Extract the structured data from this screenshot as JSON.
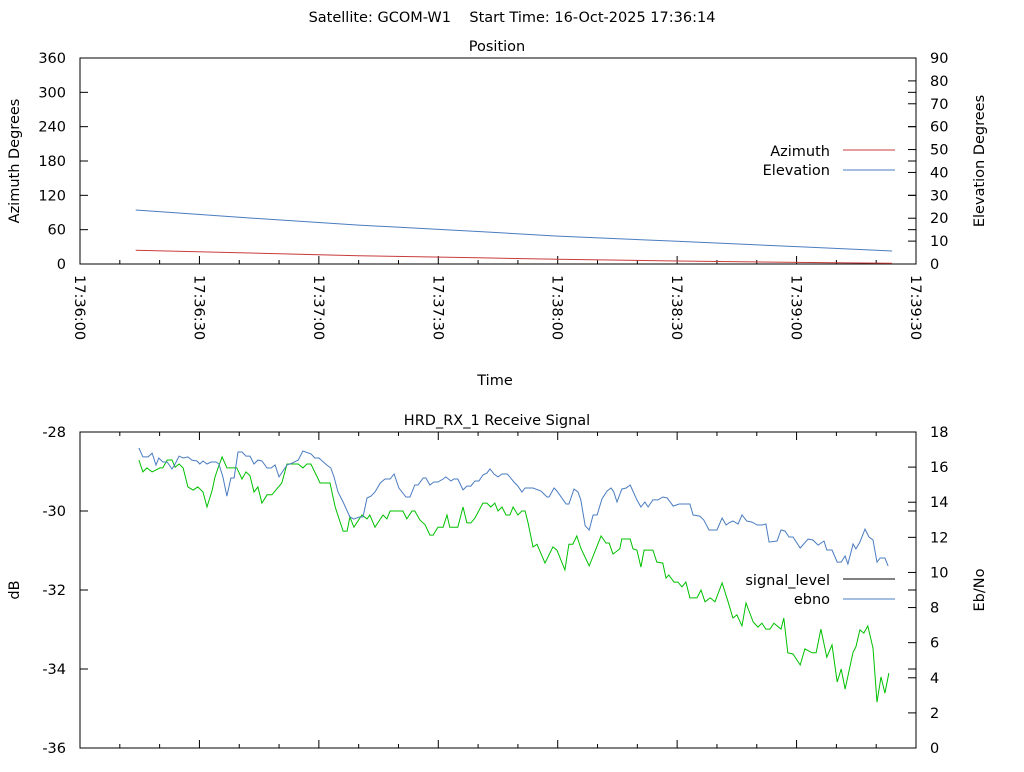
{
  "header": {
    "title": "Satellite: GCOM-W1    Start Time: 16-Oct-2025 17:36:14"
  },
  "colors": {
    "azimuth": "#c83c3c",
    "elevation": "#4a7cc0",
    "signal_level": "#00c000",
    "signal_level_legend": "#000000",
    "ebno": "#4a7cc0"
  },
  "chart_data": [
    {
      "type": "line",
      "title": "Position",
      "xlabel": "Time",
      "ylabel": "Azimuth Degrees",
      "y2label": "Elevation Degrees",
      "x_unit": "seconds after 17:36:00",
      "xlim": [
        0,
        210
      ],
      "ylim": [
        0,
        360
      ],
      "y2lim": [
        0,
        90
      ],
      "xticks": [
        0,
        30,
        60,
        90,
        120,
        150,
        180,
        210
      ],
      "xtick_labels": [
        "17:36:00",
        "17:36:30",
        "17:37:00",
        "17:37:30",
        "17:38:00",
        "17:38:30",
        "17:39:00",
        "17:39:30"
      ],
      "yticks": [
        "0",
        "60",
        "120",
        "180",
        "240",
        "300",
        "360"
      ],
      "y2ticks": [
        "0",
        "10",
        "20",
        "30",
        "40",
        "50",
        "60",
        "70",
        "80",
        "90"
      ],
      "legend_position": "right",
      "grid": false,
      "series": [
        {
          "name": "Azimuth",
          "axis": "y",
          "x": [
            14,
            40,
            70,
            100,
            120,
            150,
            180,
            204
          ],
          "values": [
            23.9,
            19.5,
            14.5,
            10.8,
            8.2,
            5.2,
            2.8,
            1.2
          ]
        },
        {
          "name": "Elevation",
          "axis": "y2",
          "x": [
            14,
            40,
            70,
            100,
            120,
            150,
            180,
            204
          ],
          "values": [
            23.6,
            20.4,
            17.0,
            14.2,
            12.2,
            9.9,
            7.6,
            5.7
          ]
        }
      ]
    },
    {
      "type": "line",
      "title": "HRD_RX_1 Receive Signal",
      "ylabel": "dB",
      "y2label": "Eb/No",
      "x_unit": "seconds after 17:36:00",
      "xlim": [
        0,
        210
      ],
      "ylim": [
        -36,
        -28
      ],
      "y2lim": [
        0,
        18
      ],
      "yticks": [
        "-28",
        "-30",
        "-32",
        "-34",
        "-36"
      ],
      "y2ticks": [
        "0",
        "2",
        "4",
        "6",
        "8",
        "10",
        "12",
        "14",
        "16",
        "18"
      ],
      "legend_position": "right",
      "grid": false,
      "series": [
        {
          "name": "signal_level",
          "axis": "y",
          "x": [
            14.8,
            15.8,
            16.8,
            18.1,
            20.1,
            20.8,
            21.9,
            23.1,
            23.9,
            24.9,
            25.9,
            27.1,
            28.4,
            29.6,
            30.9,
            31.9,
            33.2,
            33.9,
            34.7,
            35.7,
            36.9,
            39.4,
            40.7,
            41.7,
            42.7,
            43.7,
            44.7,
            45.7,
            47.0,
            48.2,
            50.7,
            52.0,
            54.8,
            56.0,
            57.0,
            58.0,
            60.3,
            62.8,
            64.1,
            66.1,
            67.1,
            67.8,
            68.8,
            70.8,
            72.1,
            72.8,
            74.1,
            76.1,
            77.1,
            77.9,
            81.1,
            82.1,
            83.4,
            84.1,
            85.4,
            86.7,
            87.9,
            88.7,
            89.9,
            91.2,
            92.2,
            92.9,
            94.9,
            96.2,
            97.2,
            98.2,
            99.2,
            101.2,
            102.2,
            103.2,
            104.2,
            105.0,
            106.0,
            107.0,
            108.0,
            108.8,
            110.0,
            111.0,
            111.8,
            112.5,
            113.8,
            114.8,
            116.8,
            118.8,
            119.8,
            121.8,
            122.8,
            123.8,
            124.8,
            125.8,
            127.9,
            130.9,
            132.1,
            132.9,
            133.9,
            135.6,
            136.1,
            138.2,
            138.9,
            139.9,
            140.9,
            141.7,
            143.9,
            144.9,
            146.4,
            147.2,
            147.9,
            149.2,
            150.2,
            151.2,
            152.2,
            153.2,
            155.0,
            156.0,
            157.0,
            158.3,
            159.5,
            161.3,
            162.8,
            164.0,
            165.0,
            166.3,
            167.3,
            169.1,
            170.3,
            171.3,
            172.3,
            173.3,
            174.3,
            176.1,
            176.8,
            177.8,
            179.1,
            180.9,
            182.1,
            183.9,
            184.9,
            186.1,
            187.6,
            188.9,
            190.2,
            191.2,
            192.2,
            194.2,
            194.9,
            195.9,
            196.9,
            197.9,
            199.2,
            200.2,
            201.2,
            202.2,
            203.2
          ],
          "values": [
            -28.71,
            -29.01,
            -28.91,
            -29.01,
            -28.91,
            -28.91,
            -28.71,
            -28.71,
            -28.89,
            -28.81,
            -28.91,
            -29.39,
            -29.47,
            -29.39,
            -29.52,
            -29.9,
            -29.47,
            -29.14,
            -28.91,
            -28.63,
            -28.91,
            -28.91,
            -29.19,
            -29.01,
            -29.11,
            -29.52,
            -29.39,
            -29.8,
            -29.59,
            -29.59,
            -29.29,
            -28.81,
            -28.81,
            -28.91,
            -28.81,
            -28.81,
            -29.29,
            -29.29,
            -29.9,
            -30.51,
            -30.51,
            -30.15,
            -30.41,
            -30.1,
            -30.2,
            -30.1,
            -30.41,
            -30.1,
            -30.2,
            -30.0,
            -30.0,
            -30.2,
            -30.0,
            -30.0,
            -30.23,
            -30.35,
            -30.61,
            -30.61,
            -30.41,
            -30.41,
            -30.1,
            -30.41,
            -30.41,
            -29.9,
            -30.3,
            -30.3,
            -30.18,
            -29.8,
            -29.8,
            -29.9,
            -29.8,
            -30.0,
            -29.9,
            -30.1,
            -30.1,
            -29.9,
            -30.1,
            -30.0,
            -30.0,
            -30.28,
            -30.91,
            -30.84,
            -31.32,
            -30.91,
            -30.99,
            -31.49,
            -30.84,
            -30.84,
            -30.63,
            -30.94,
            -31.39,
            -30.63,
            -30.81,
            -30.81,
            -31.09,
            -30.96,
            -30.71,
            -30.71,
            -30.96,
            -30.99,
            -31.42,
            -30.99,
            -30.99,
            -31.29,
            -31.32,
            -31.7,
            -31.62,
            -31.8,
            -31.8,
            -31.92,
            -31.8,
            -32.2,
            -32.2,
            -32.0,
            -32.3,
            -32.2,
            -32.3,
            -31.82,
            -32.3,
            -32.71,
            -32.63,
            -32.91,
            -32.33,
            -32.81,
            -32.94,
            -32.84,
            -32.99,
            -32.99,
            -32.84,
            -32.99,
            -32.71,
            -33.59,
            -33.62,
            -33.9,
            -33.49,
            -33.59,
            -33.59,
            -32.99,
            -33.7,
            -33.39,
            -34.33,
            -34.0,
            -34.51,
            -33.57,
            -33.44,
            -33.01,
            -33.09,
            -32.91,
            -33.47,
            -34.84,
            -34.2,
            -34.61,
            -34.1
          ]
        },
        {
          "name": "ebno",
          "axis": "y2",
          "x": [
            14.8,
            15.8,
            17.1,
            18.1,
            19.1,
            19.8,
            20.8,
            21.9,
            23.1,
            23.9,
            24.9,
            25.9,
            27.1,
            28.1,
            29.4,
            30.1,
            30.9,
            31.9,
            32.9,
            34.2,
            34.9,
            35.9,
            36.9,
            37.9,
            38.7,
            39.7,
            40.7,
            41.7,
            42.7,
            43.7,
            44.7,
            45.7,
            47.0,
            48.0,
            49.0,
            50.0,
            52.0,
            53.3,
            54.8,
            56.0,
            58.0,
            59.0,
            60.0,
            62.0,
            63.0,
            63.8,
            64.8,
            66.1,
            67.8,
            68.8,
            70.1,
            71.1,
            72.1,
            73.1,
            74.1,
            75.4,
            76.6,
            77.9,
            78.9,
            80.1,
            81.9,
            82.9,
            84.1,
            84.9,
            86.2,
            86.9,
            87.9,
            88.9,
            89.9,
            91.2,
            91.9,
            93.2,
            93.9,
            94.9,
            96.2,
            97.2,
            98.2,
            99.2,
            100.2,
            101.2,
            102.2,
            103.0,
            104.0,
            105.0,
            106.0,
            107.3,
            108.0,
            109.0,
            110.0,
            111.0,
            111.8,
            113.8,
            115.8,
            117.3,
            117.8,
            119.1,
            119.8,
            122.1,
            122.8,
            124.1,
            125.1,
            125.8,
            126.9,
            127.9,
            128.9,
            129.9,
            131.1,
            132.4,
            133.4,
            134.1,
            134.9,
            136.1,
            137.2,
            138.2,
            139.9,
            140.9,
            141.9,
            142.7,
            143.9,
            145.2,
            146.4,
            147.5,
            149.0,
            150.5,
            152.0,
            153.2,
            154.0,
            155.7,
            156.7,
            158.0,
            160.0,
            161.3,
            162.3,
            163.0,
            164.0,
            165.3,
            166.3,
            167.5,
            168.8,
            170.1,
            171.3,
            172.3,
            173.1,
            175.1,
            176.1,
            177.1,
            178.1,
            179.1,
            180.9,
            182.9,
            184.1,
            185.4,
            186.9,
            187.6,
            188.9,
            190.2,
            191.2,
            192.2,
            192.9,
            194.2,
            194.9,
            195.9,
            197.2,
            198.2,
            199.2,
            200.2,
            201.0,
            202.2,
            203.0
          ],
          "values": [
            17.09,
            16.58,
            16.58,
            16.8,
            16.12,
            16.52,
            16.29,
            16.29,
            15.89,
            16.18,
            16.63,
            16.52,
            16.58,
            16.4,
            16.35,
            16.18,
            16.35,
            16.18,
            16.29,
            16.29,
            16.18,
            15.44,
            14.35,
            15.38,
            15.38,
            16.86,
            16.86,
            16.63,
            16.63,
            16.18,
            16.4,
            16.35,
            15.95,
            15.95,
            16.12,
            15.44,
            16.12,
            16.23,
            16.4,
            16.92,
            16.75,
            16.52,
            16.52,
            16.12,
            15.95,
            15.44,
            14.58,
            14.01,
            13.16,
            13.04,
            13.16,
            13.16,
            14.24,
            14.35,
            14.58,
            15.09,
            15.32,
            15.32,
            15.61,
            14.81,
            14.3,
            14.3,
            14.98,
            14.98,
            15.38,
            15.38,
            14.98,
            15.15,
            15.15,
            15.32,
            15.44,
            15.21,
            15.32,
            15.32,
            14.7,
            14.92,
            14.92,
            15.21,
            15.21,
            15.55,
            15.66,
            15.89,
            15.61,
            15.44,
            15.61,
            15.61,
            15.44,
            15.15,
            14.92,
            14.58,
            14.81,
            14.81,
            14.64,
            14.3,
            14.3,
            14.81,
            14.64,
            13.9,
            13.9,
            14.75,
            14.58,
            14.13,
            12.65,
            12.42,
            13.27,
            13.27,
            14.18,
            14.64,
            14.81,
            14.58,
            14.01,
            14.75,
            14.81,
            14.98,
            14.13,
            13.73,
            14.01,
            13.73,
            14.13,
            14.13,
            14.3,
            14.24,
            13.78,
            13.9,
            13.9,
            13.9,
            13.27,
            13.21,
            12.99,
            12.42,
            12.42,
            13.1,
            12.7,
            12.82,
            12.93,
            12.76,
            13.27,
            12.93,
            12.87,
            12.7,
            12.7,
            12.76,
            11.73,
            11.79,
            12.42,
            12.36,
            12.02,
            12.02,
            11.39,
            11.9,
            11.85,
            11.56,
            11.79,
            11.28,
            11.28,
            10.59,
            10.59,
            10.94,
            10.48,
            11.62,
            11.34,
            11.73,
            12.47,
            12.02,
            11.85,
            10.59,
            10.82,
            10.82,
            10.37
          ]
        }
      ]
    }
  ]
}
